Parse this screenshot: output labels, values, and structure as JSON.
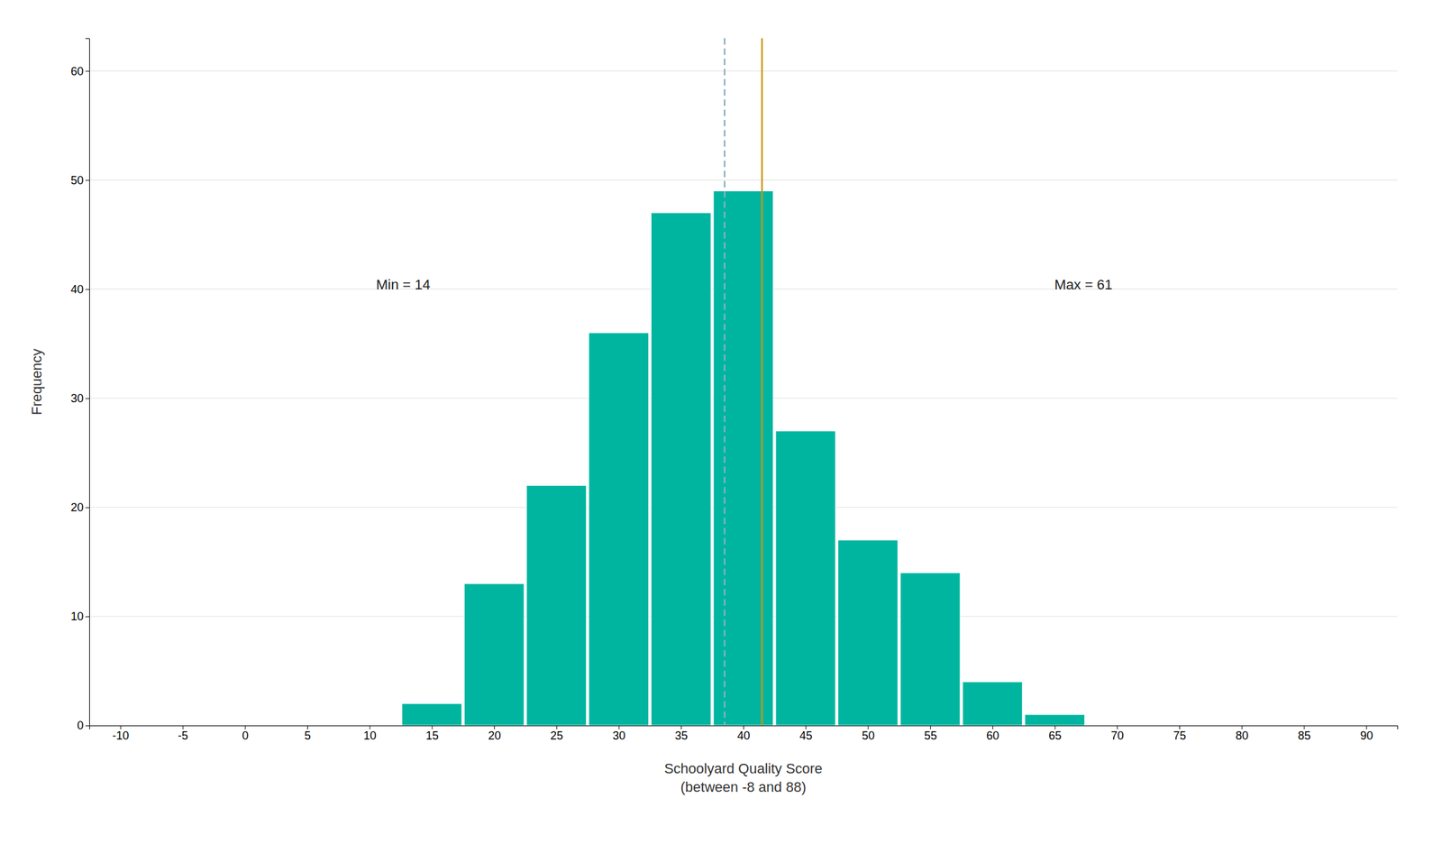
{
  "chart_data": {
    "type": "bar",
    "x": [
      15,
      20,
      25,
      30,
      35,
      40,
      45,
      50,
      55,
      60,
      65
    ],
    "values": [
      2,
      13,
      22,
      36,
      47,
      49,
      27,
      17,
      14,
      4,
      1
    ],
    "color": "#00B5A0",
    "x_label": "Schoolyard Quality Score\n(between -8 and 88)",
    "y_label": "Frequency",
    "xlim": [
      -12.5,
      92.5
    ],
    "ylim": [
      0,
      63
    ],
    "xticks": [
      -10,
      -5,
      0,
      5,
      10,
      15,
      20,
      25,
      30,
      35,
      40,
      45,
      50,
      55,
      60,
      65,
      70,
      75,
      80,
      85,
      90
    ],
    "yticks": [
      0,
      10,
      20,
      30,
      40,
      50,
      60
    ],
    "grid": true,
    "vlines": [
      {
        "x": 38.5,
        "color": "#8BAFC0",
        "line_style": "dashed"
      },
      {
        "x": 41.5,
        "color": "#C8960C",
        "line_style": "solid"
      }
    ],
    "annotations": [
      "Min = 14",
      "Max = 61"
    ]
  }
}
